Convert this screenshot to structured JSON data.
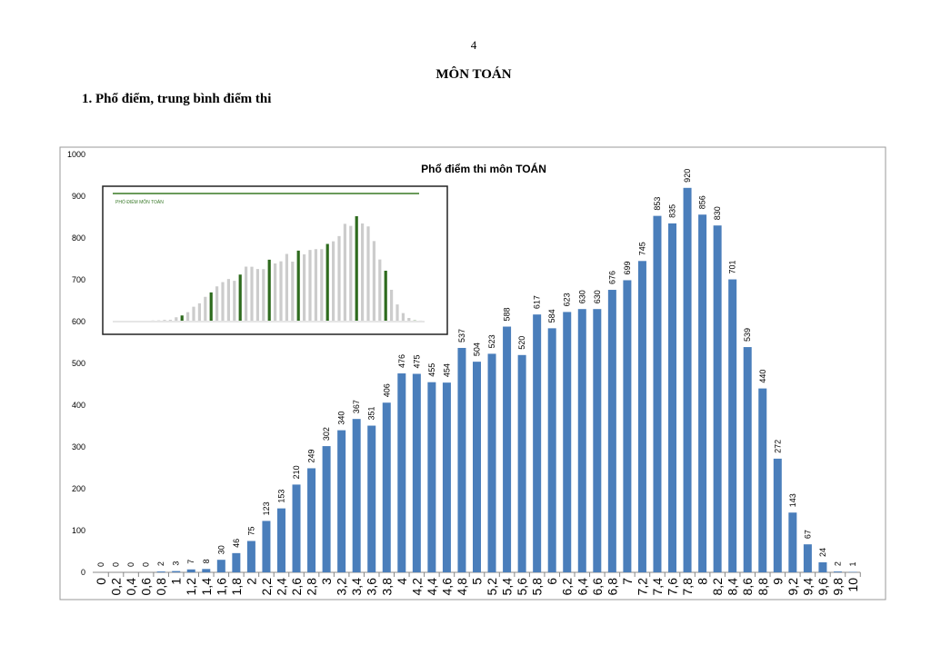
{
  "page_number": "4",
  "heading": "MÔN TOÁN",
  "section": "1. Phổ điểm, trung bình điểm thi",
  "inset_title": "PHỔ ĐIỂM MÔN TOÁN",
  "chart_data": {
    "type": "bar",
    "title": "Phổ điểm thi môn TOÁN",
    "xlabel": "",
    "ylabel": "",
    "ylim": [
      0,
      1000
    ],
    "yticks": [
      0,
      100,
      200,
      300,
      400,
      500,
      600,
      700,
      800,
      900,
      1000
    ],
    "categories": [
      "0",
      "0,2",
      "0,4",
      "0,6",
      "0,8",
      "1",
      "1,2",
      "1,4",
      "1,6",
      "1,8",
      "2",
      "2,2",
      "2,4",
      "2,6",
      "2,8",
      "3",
      "3,2",
      "3,4",
      "3,6",
      "3,8",
      "4",
      "4,2",
      "4,4",
      "4,6",
      "4,8",
      "5",
      "5,2",
      "5,4",
      "5,6",
      "5,8",
      "6",
      "6,2",
      "6,4",
      "6,6",
      "6,8",
      "7",
      "7,2",
      "7,4",
      "7,6",
      "7,8",
      "8",
      "8,2",
      "8,4",
      "8,6",
      "8,8",
      "9",
      "9,2",
      "9,4",
      "9,6",
      "9,8",
      "10"
    ],
    "values": [
      0,
      0,
      0,
      0,
      2,
      3,
      7,
      8,
      30,
      46,
      75,
      123,
      153,
      210,
      249,
      302,
      340,
      367,
      351,
      406,
      476,
      475,
      455,
      454,
      537,
      504,
      523,
      588,
      520,
      617,
      584,
      623,
      630,
      630,
      676,
      699,
      745,
      853,
      835,
      920,
      856,
      830,
      701,
      539,
      440,
      272,
      143,
      67,
      24,
      2,
      1
    ],
    "bar_color": "#4a7ebb",
    "grid": false
  }
}
